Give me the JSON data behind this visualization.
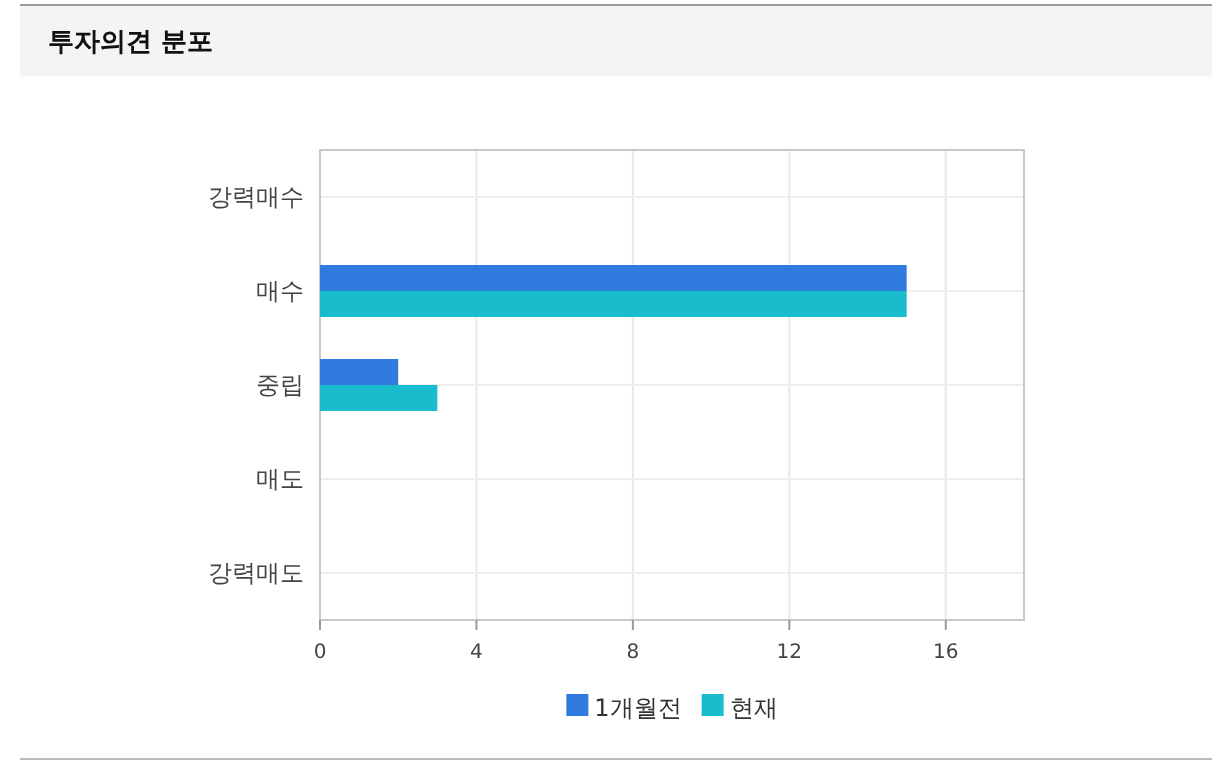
{
  "chart_data": {
    "type": "bar",
    "orientation": "horizontal",
    "title": "투자의견 분포",
    "categories": [
      "강력매수",
      "매수",
      "중립",
      "매도",
      "강력매도"
    ],
    "series": [
      {
        "name": "1개월전",
        "color": "#2f7be0",
        "values": [
          null,
          15,
          2,
          null,
          null
        ]
      },
      {
        "name": "현재",
        "color": "#18bccd",
        "values": [
          null,
          15,
          3,
          null,
          null
        ]
      }
    ],
    "xlim": [
      0,
      18
    ],
    "xticks": [
      0,
      4,
      8,
      12,
      16
    ],
    "grid": true,
    "legend": "bottom"
  }
}
